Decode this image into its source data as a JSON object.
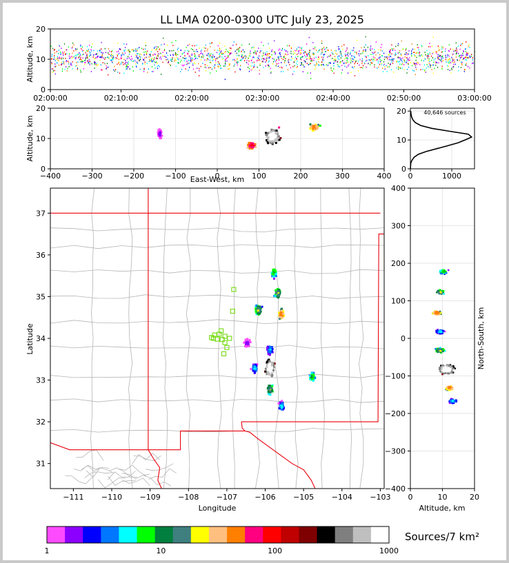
{
  "title": "LL LMA 0200-0300 UTC July 23, 2025",
  "sources_label": "40,646 sources",
  "colorbar_label": "Sources/7 km²",
  "colors": {
    "state_border": "#e8000b",
    "county_border": "#b4b4b4",
    "station_marker": "#7ddc1f"
  },
  "chart_data": [
    {
      "type": "scatter",
      "panel": "time-altitude",
      "ylabel": "Altitude, km",
      "ylim": [
        0,
        20
      ],
      "yticks": [
        0,
        10,
        20
      ],
      "xticks": [
        "02:00:00",
        "02:10:00",
        "02:20:00",
        "02:30:00",
        "02:40:00",
        "02:50:00",
        "03:00:00"
      ],
      "xlim": [
        "02:00:00",
        "03:00:00"
      ],
      "altitude_band_km": [
        4,
        17
      ]
    },
    {
      "type": "heatmap",
      "panel": "east-west-altitude",
      "xlabel": "East-West, km",
      "ylabel": "Altitude, km",
      "xlim": [
        -400,
        400
      ],
      "ylim": [
        0,
        20
      ],
      "xticks": [
        -400,
        -300,
        -200,
        -100,
        0,
        100,
        200,
        300,
        400
      ],
      "yticks": [
        0,
        10,
        20
      ],
      "clusters": [
        {
          "x": 80,
          "y": 8,
          "max_sources": 100
        },
        {
          "x": 130,
          "y": 11,
          "max_sources": 1000
        },
        {
          "x": 230,
          "y": 14,
          "max_sources": 50
        },
        {
          "x": -140,
          "y": 12,
          "max_sources": 2
        }
      ]
    },
    {
      "type": "line",
      "panel": "altitude-histogram",
      "xlim": [
        0,
        1550
      ],
      "ylim": [
        0,
        21
      ],
      "xticks": [
        0,
        1000
      ],
      "yticks": [
        0,
        10,
        20
      ],
      "series": [
        {
          "altitude": [
            0,
            2,
            3,
            4,
            5,
            6,
            7,
            8,
            9,
            10,
            11,
            12,
            13,
            14,
            15,
            16,
            17,
            18,
            19,
            20
          ],
          "count": [
            0,
            10,
            40,
            90,
            190,
            380,
            640,
            900,
            1150,
            1320,
            1480,
            1400,
            950,
            520,
            250,
            120,
            60,
            30,
            15,
            8
          ]
        }
      ]
    },
    {
      "type": "heatmap",
      "panel": "plan-view",
      "xlabel": "Longitude",
      "ylabel": "Latitude",
      "xlim": [
        -111.6,
        -102.9
      ],
      "ylim": [
        30.4,
        37.6
      ],
      "xticks": [
        -111,
        -110,
        -109,
        -108,
        -107,
        -106,
        -105,
        -104,
        -103
      ],
      "yticks": [
        31,
        32,
        33,
        34,
        35,
        36,
        37
      ],
      "clusters": [
        {
          "lon": -105.9,
          "lat": 33.3,
          "max_sources": 1000
        },
        {
          "lon": -105.6,
          "lat": 34.6,
          "max_sources": 50
        },
        {
          "lon": -106.2,
          "lat": 34.7,
          "max_sources": 20
        },
        {
          "lon": -105.7,
          "lat": 35.1,
          "max_sources": 20
        },
        {
          "lon": -105.8,
          "lat": 35.6,
          "max_sources": 10
        },
        {
          "lon": -105.9,
          "lat": 32.8,
          "max_sources": 20
        },
        {
          "lon": -106.3,
          "lat": 33.3,
          "max_sources": 5
        },
        {
          "lon": -106.5,
          "lat": 33.9,
          "max_sources": 2
        },
        {
          "lon": -104.8,
          "lat": 33.1,
          "max_sources": 10
        },
        {
          "lon": -105.6,
          "lat": 32.4,
          "max_sources": 5
        },
        {
          "lon": -105.9,
          "lat": 33.75,
          "max_sources": 5
        }
      ],
      "stations": [
        {
          "lon": -107.32,
          "lat": 34.08
        },
        {
          "lon": -107.15,
          "lat": 34.18
        },
        {
          "lon": -107.35,
          "lat": 34.0
        },
        {
          "lon": -107.25,
          "lat": 33.98
        },
        {
          "lon": -107.12,
          "lat": 33.97
        },
        {
          "lon": -107.05,
          "lat": 34.05
        },
        {
          "lon": -106.93,
          "lat": 34.0
        },
        {
          "lon": -107.2,
          "lat": 34.1
        },
        {
          "lon": -107.05,
          "lat": 33.9
        },
        {
          "lon": -107.0,
          "lat": 33.78
        },
        {
          "lon": -107.08,
          "lat": 33.63
        },
        {
          "lon": -106.85,
          "lat": 34.65
        },
        {
          "lon": -106.82,
          "lat": 35.17
        },
        {
          "lon": -107.4,
          "lat": 34.02
        }
      ]
    },
    {
      "type": "heatmap",
      "panel": "altitude-north-south",
      "xlabel": "Altitude, km",
      "ylabel": "North-South, km",
      "xlim": [
        0,
        20
      ],
      "ylim": [
        -400,
        400
      ],
      "xticks": [
        0,
        10,
        20
      ],
      "yticks": [
        -400,
        -300,
        -200,
        -100,
        0,
        100,
        200,
        300,
        400
      ],
      "clusters": [
        {
          "alt": 10,
          "ns": 180,
          "max_sources": 10
        },
        {
          "alt": 9,
          "ns": 125,
          "max_sources": 20
        },
        {
          "alt": 8,
          "ns": 70,
          "max_sources": 50
        },
        {
          "alt": 9,
          "ns": 20,
          "max_sources": 5
        },
        {
          "alt": 9,
          "ns": -30,
          "max_sources": 20
        },
        {
          "alt": 11,
          "ns": -80,
          "max_sources": 1000
        },
        {
          "alt": 12,
          "ns": -130,
          "max_sources": 50
        },
        {
          "alt": 13,
          "ns": -165,
          "max_sources": 5
        }
      ]
    },
    {
      "type": "colorbar",
      "panel": "colorbar",
      "scale": "log",
      "range": [
        1,
        1000
      ],
      "tick_labels": [
        "1",
        "10",
        "100",
        "1000"
      ],
      "colors": [
        "#ff4bff",
        "#8b00ff",
        "#0000ff",
        "#0077ff",
        "#00ffff",
        "#00ff00",
        "#007f3f",
        "#3f7f7f",
        "#ffff00",
        "#ffbf7f",
        "#ff7f00",
        "#ff0080",
        "#ff0000",
        "#c00000",
        "#7f0000",
        "#000000",
        "#7f7f7f",
        "#bfbfbf",
        "#ffffff"
      ]
    }
  ]
}
